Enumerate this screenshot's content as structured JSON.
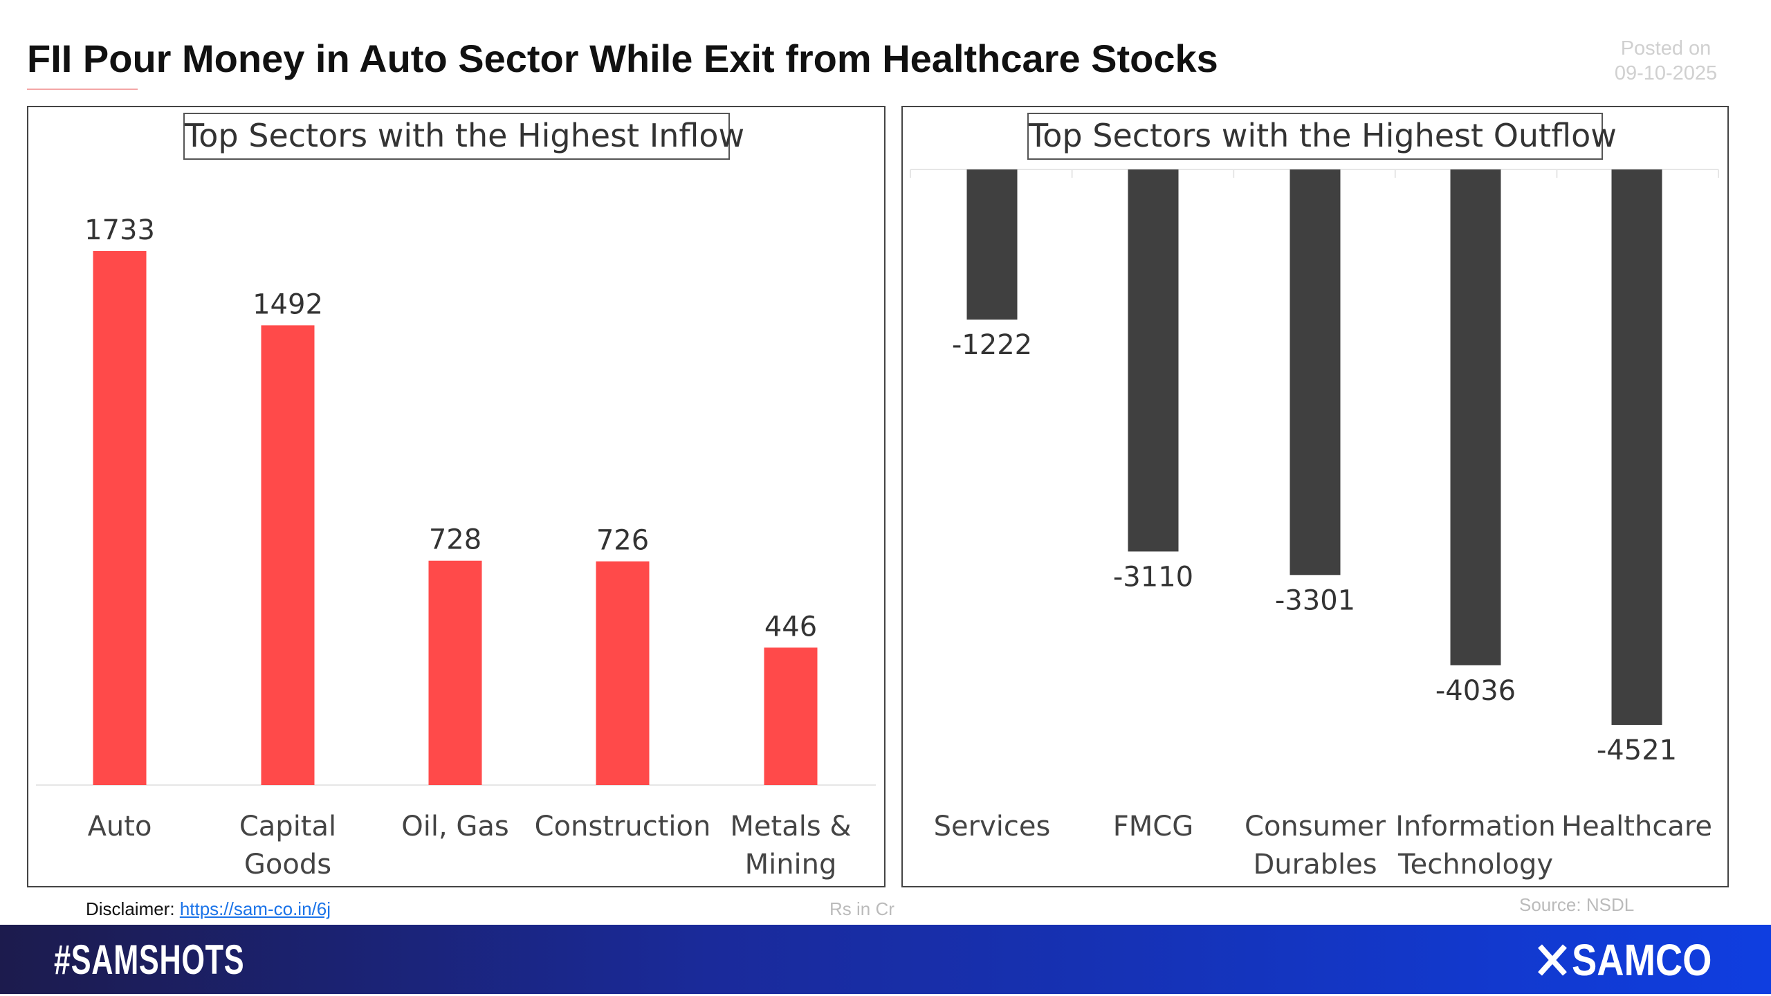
{
  "header": {
    "title": "FII Pour Money in Auto Sector While Exit from Healthcare Stocks",
    "posted_label": "Posted on",
    "posted_date": "09-10-2025"
  },
  "footer": {
    "disclaimer_label": "Disclaimer:",
    "disclaimer_link": "https://sam-co.in/6j",
    "units": "Rs in Cr",
    "source": "Source: NSDL",
    "hashtag": "#SAMSHOTS",
    "logo": "SAMCO"
  },
  "colors": {
    "inflow": "#ff4a4a",
    "outflow": "#404040",
    "banner_start": "#1c1b4d",
    "banner_end": "#0f3ee0"
  },
  "chart_data": [
    {
      "type": "bar",
      "title": "Top Sectors with the Highest Inflow",
      "categories": [
        "Auto",
        "Capital Goods",
        "Oil, Gas",
        "Construction",
        "Metals & Mining"
      ],
      "category_lines": [
        [
          "Auto"
        ],
        [
          "Capital",
          "Goods"
        ],
        [
          "Oil, Gas"
        ],
        [
          "Construction"
        ],
        [
          "Metals &",
          "Mining"
        ]
      ],
      "values": [
        1733,
        1492,
        728,
        726,
        446
      ],
      "value_labels": [
        "1733",
        "1492",
        "728",
        "726",
        "446"
      ],
      "grid": false
    },
    {
      "type": "bar",
      "title": "Top Sectors with the Highest Outflow",
      "categories": [
        "Services",
        "FMCG",
        "Consumer Durables",
        "Information Technology",
        "Healthcare"
      ],
      "category_lines": [
        [
          "Services"
        ],
        [
          "FMCG"
        ],
        [
          "Consumer",
          "Durables"
        ],
        [
          "Information",
          "Technology"
        ],
        [
          "Healthcare"
        ]
      ],
      "values": [
        -1222,
        -3110,
        -3301,
        -4036,
        -4521
      ],
      "value_labels": [
        "-1222",
        "-3110",
        "-3301",
        "-4036",
        "-4521"
      ],
      "grid": false
    }
  ]
}
